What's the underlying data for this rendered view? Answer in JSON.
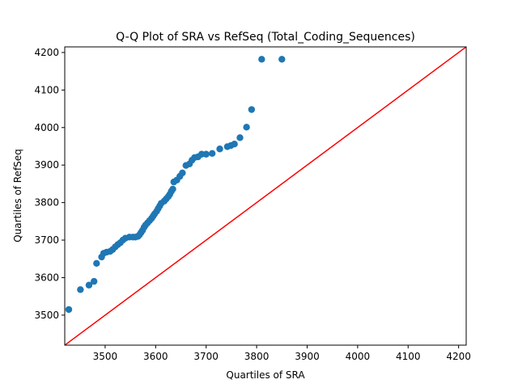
{
  "chart_data": {
    "type": "scatter",
    "title": "Q-Q Plot of SRA vs RefSeq (Total_Coding_Sequences)",
    "xlabel": "Quartiles of SRA",
    "ylabel": "Quartiles of RefSeq",
    "xlim": [
      3420,
      4215
    ],
    "ylim": [
      3420,
      4215
    ],
    "xticks": [
      3500,
      3600,
      3700,
      3800,
      3900,
      4000,
      4100,
      4200
    ],
    "yticks": [
      3500,
      3600,
      3700,
      3800,
      3900,
      4000,
      4100,
      4200
    ],
    "grid": false,
    "point_color": "#1f77b4",
    "reference_line": {
      "from": [
        3420,
        3420
      ],
      "to": [
        4215,
        4215
      ],
      "color": "#ff0000"
    },
    "points": [
      [
        3428,
        3515
      ],
      [
        3451,
        3568
      ],
      [
        3468,
        3580
      ],
      [
        3478,
        3590
      ],
      [
        3483,
        3638
      ],
      [
        3493,
        3655
      ],
      [
        3497,
        3665
      ],
      [
        3503,
        3668
      ],
      [
        3510,
        3670
      ],
      [
        3515,
        3675
      ],
      [
        3520,
        3682
      ],
      [
        3525,
        3688
      ],
      [
        3530,
        3693
      ],
      [
        3535,
        3700
      ],
      [
        3540,
        3705
      ],
      [
        3548,
        3708
      ],
      [
        3555,
        3708
      ],
      [
        3560,
        3708
      ],
      [
        3565,
        3710
      ],
      [
        3568,
        3714
      ],
      [
        3571,
        3720
      ],
      [
        3574,
        3726
      ],
      [
        3577,
        3734
      ],
      [
        3580,
        3740
      ],
      [
        3584,
        3746
      ],
      [
        3588,
        3752
      ],
      [
        3592,
        3758
      ],
      [
        3595,
        3764
      ],
      [
        3598,
        3770
      ],
      [
        3602,
        3777
      ],
      [
        3605,
        3784
      ],
      [
        3608,
        3791
      ],
      [
        3611,
        3798
      ],
      [
        3617,
        3804
      ],
      [
        3621,
        3810
      ],
      [
        3625,
        3816
      ],
      [
        3628,
        3822
      ],
      [
        3631,
        3830
      ],
      [
        3634,
        3836
      ],
      [
        3636,
        3855
      ],
      [
        3642,
        3860
      ],
      [
        3648,
        3870
      ],
      [
        3653,
        3879
      ],
      [
        3660,
        3899
      ],
      [
        3667,
        3903
      ],
      [
        3672,
        3913
      ],
      [
        3677,
        3920
      ],
      [
        3684,
        3922
      ],
      [
        3691,
        3929
      ],
      [
        3700,
        3929
      ],
      [
        3712,
        3931
      ],
      [
        3727,
        3943
      ],
      [
        3742,
        3949
      ],
      [
        3749,
        3952
      ],
      [
        3756,
        3956
      ],
      [
        3767,
        3973
      ],
      [
        3780,
        4001
      ],
      [
        3790,
        4048
      ],
      [
        3810,
        4182
      ],
      [
        3850,
        4182
      ]
    ]
  }
}
